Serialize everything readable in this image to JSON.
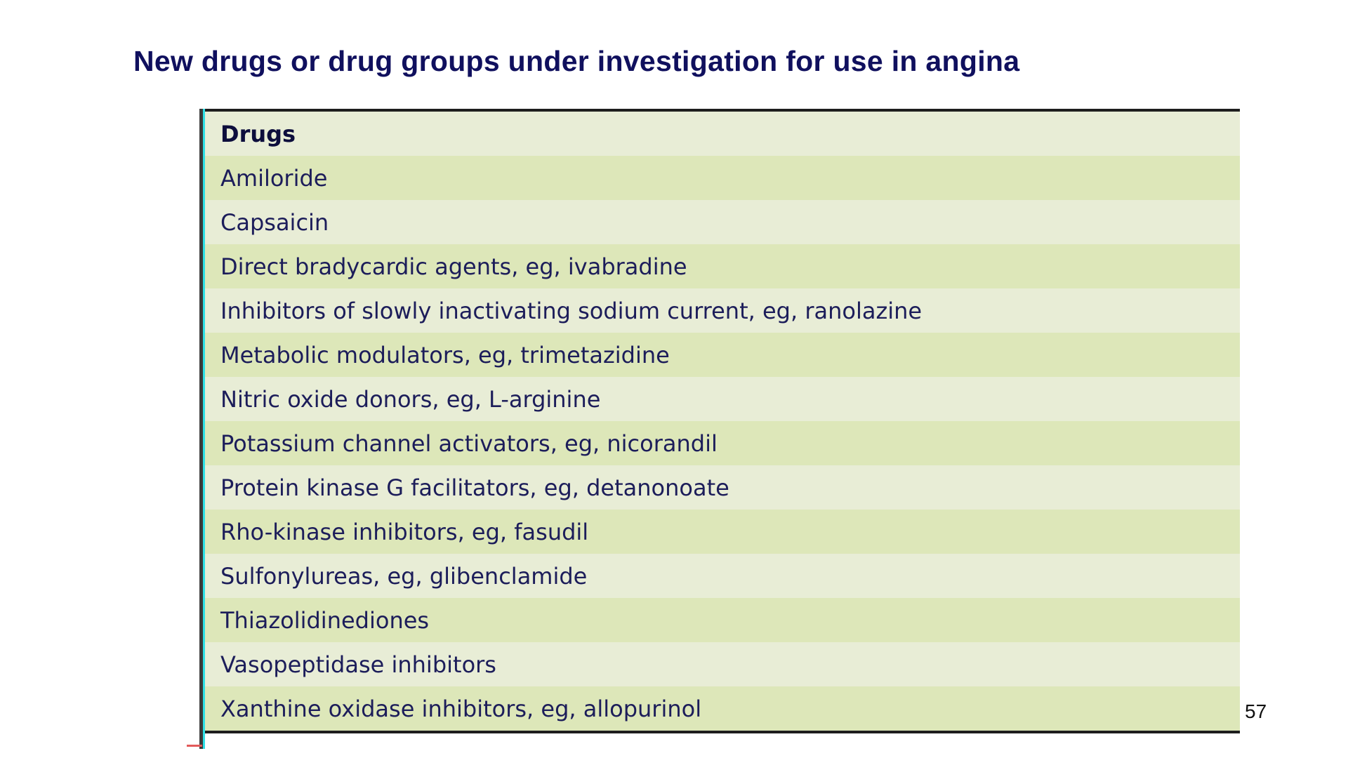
{
  "slide": {
    "title": "New drugs or drug groups under investigation for use in angina",
    "page_number": "57"
  },
  "table": {
    "header": "Drugs",
    "rows": [
      "Amiloride",
      "Capsaicin",
      "Direct bradycardic agents, eg, ivabradine",
      "Inhibitors of slowly inactivating sodium current, eg, ranolazine",
      "Metabolic modulators, eg, trimetazidine",
      "Nitric oxide donors, eg, L-arginine",
      "Potassium channel activators, eg, nicorandil",
      "Protein kinase G facilitators, eg, detanonoate",
      "Rho-kinase inhibitors, eg, fasudil",
      "Sulfonylureas, eg, glibenclamide",
      "Thiazolidinediones",
      "Vasopeptidase inhibitors",
      "Xanthine oxidase inhibitors, eg, allopurinol"
    ]
  },
  "colors": {
    "title": "#10105e",
    "row_dark": "#dde7b9",
    "row_light": "#e8edd6",
    "row_text": "#1c1d5a"
  }
}
